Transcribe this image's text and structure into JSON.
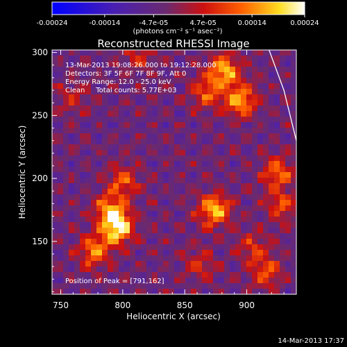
{
  "colorbar": {
    "tick_labels": [
      "-0.00024",
      "-0.00014",
      "-4.7e-05",
      "4.7e-05",
      "0.00014",
      "0.00024"
    ],
    "tick_values": [
      -0.00024,
      -0.00014,
      -4.7e-05,
      4.7e-05,
      0.00014,
      0.00024
    ],
    "range": [
      -0.00024,
      0.00024
    ],
    "unit_label": "(photons cm⁻² s⁻¹ asec⁻²)",
    "colormap": "rainbow-like: blue → purple → red → orange → yellow → white"
  },
  "chart_data": {
    "type": "heatmap",
    "title": "Reconstructed RHESSI Image",
    "xlabel": "Heliocentric X (arcsec)",
    "ylabel": "Heliocentric Y (arcsec)",
    "xlim": [
      743,
      940
    ],
    "ylim": [
      108,
      302
    ],
    "x_ticks": [
      750,
      800,
      850,
      900
    ],
    "y_ticks": [
      150,
      200,
      250,
      300
    ],
    "annotations": [
      "13-Mar-2013 19:08:26.000 to 19:12:28.000",
      "Detectors: 3F 5F 6F 7F 8F 9F, Att 0",
      "Energy Range: 12.0 - 25.0 keV",
      "Clean     Total counts: 5.77E+03"
    ],
    "peak_label": "Position of Peak = [791,162]",
    "peak_position": [
      791,
      162
    ],
    "sources": [
      {
        "x": 796,
        "y": 160,
        "amplitude": 0.00024
      },
      {
        "x": 790,
        "y": 175,
        "amplitude": 0.00018
      },
      {
        "x": 777,
        "y": 142,
        "amplitude": 0.00016
      },
      {
        "x": 800,
        "y": 198,
        "amplitude": 0.00013
      },
      {
        "x": 874,
        "y": 175,
        "amplitude": 0.00021
      },
      {
        "x": 882,
        "y": 286,
        "amplitude": 0.0002
      },
      {
        "x": 895,
        "y": 262,
        "amplitude": 0.00019
      },
      {
        "x": 868,
        "y": 268,
        "amplitude": 0.00013
      },
      {
        "x": 925,
        "y": 205,
        "amplitude": 0.00015
      },
      {
        "x": 928,
        "y": 178,
        "amplitude": 0.00012
      },
      {
        "x": 915,
        "y": 125,
        "amplitude": 0.00012
      },
      {
        "x": 905,
        "y": 145,
        "amplitude": 0.0001
      },
      {
        "x": 862,
        "y": 132,
        "amplitude": 9e-05
      },
      {
        "x": 760,
        "y": 265,
        "amplitude": 8e-05
      },
      {
        "x": 813,
        "y": 296,
        "amplitude": 8e-05
      }
    ],
    "limb_curve": [
      [
        918,
        302
      ],
      [
        930,
        270
      ],
      [
        940,
        230
      ]
    ]
  },
  "timestamp": "14-Mar-2013 17:37"
}
